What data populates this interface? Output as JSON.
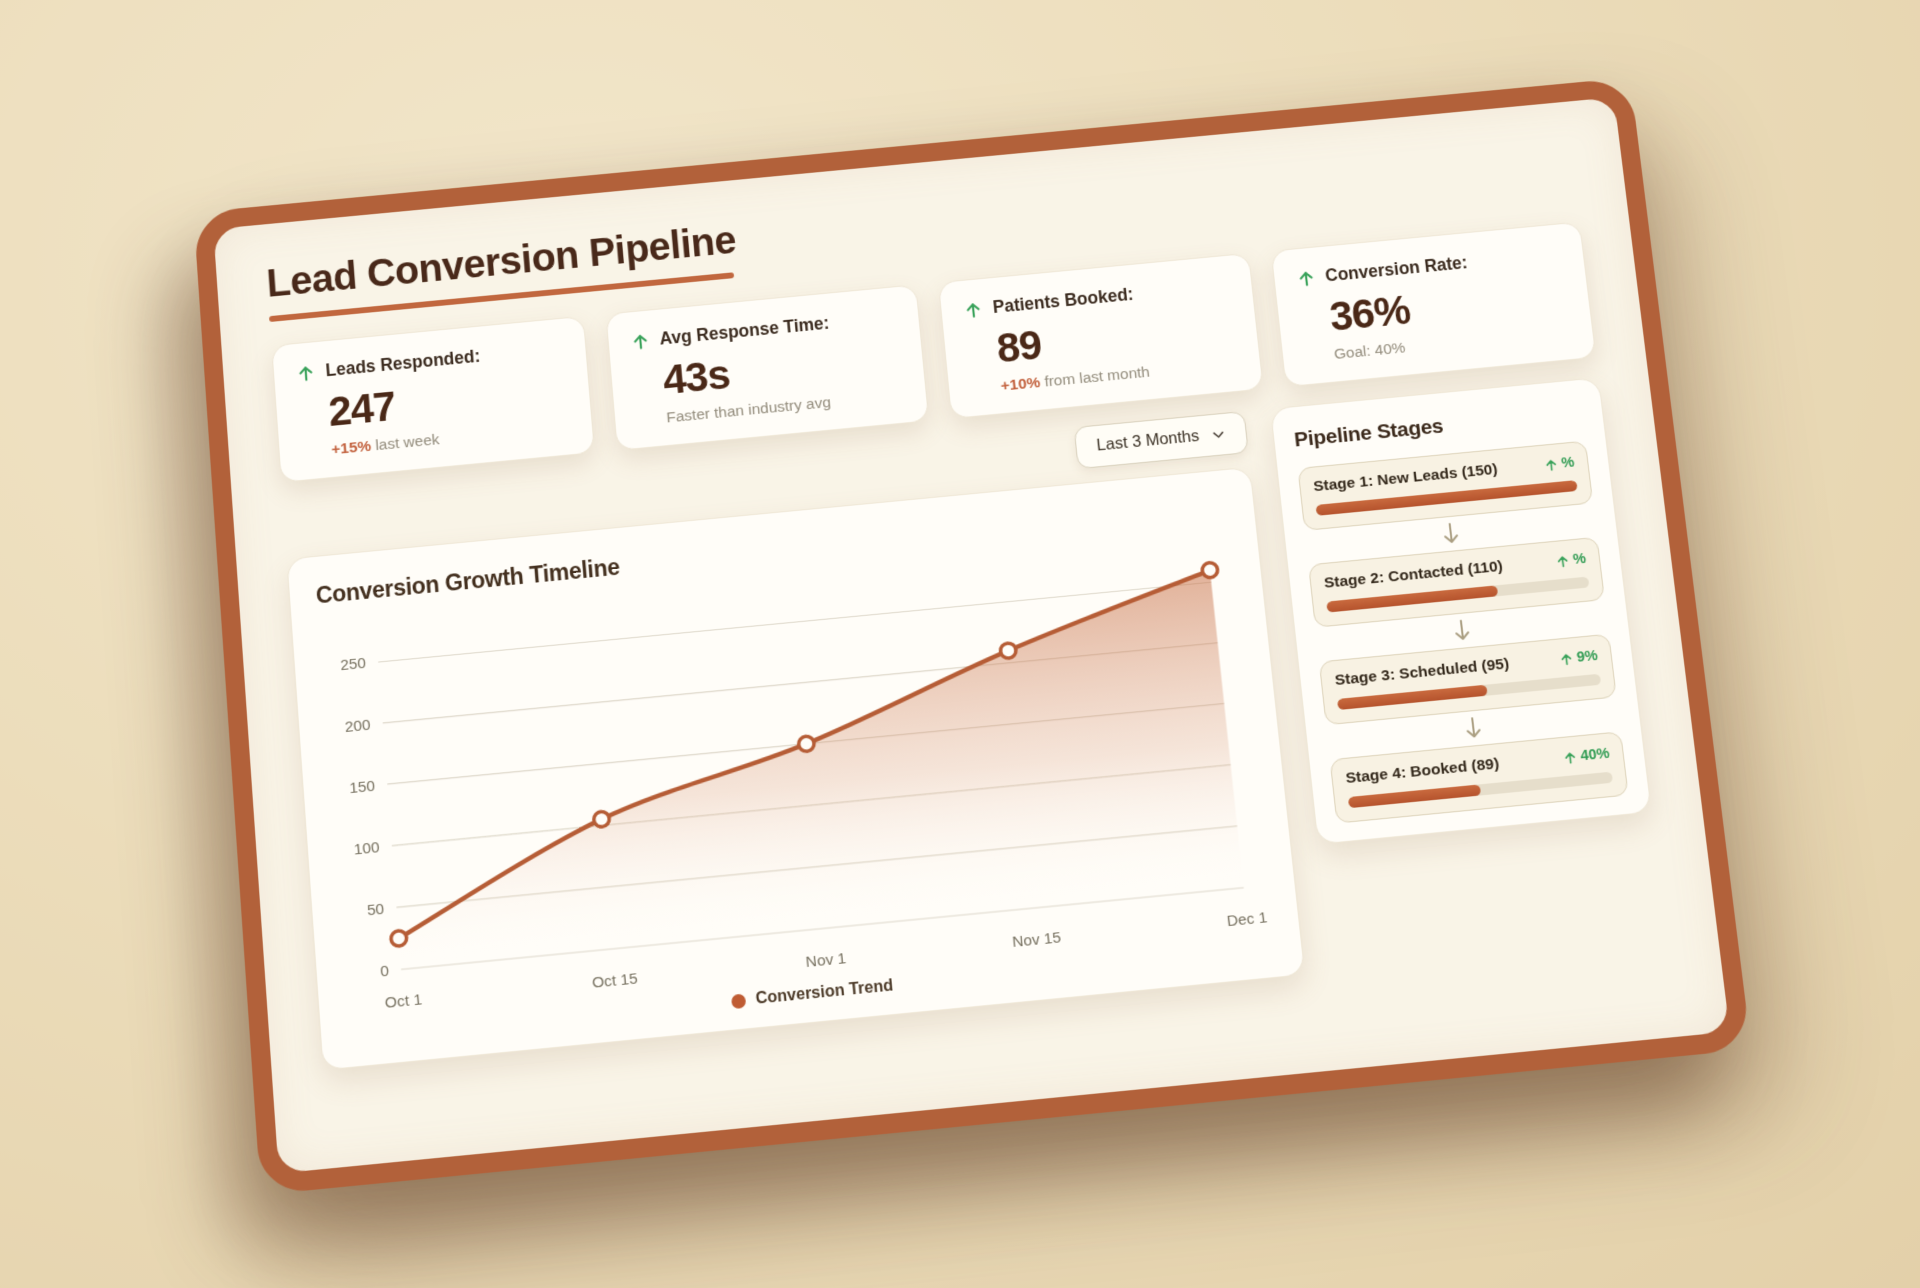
{
  "header": {
    "title": "Lead Conversion Pipeline"
  },
  "kpis": [
    {
      "label": "Leads Responded:",
      "value": "247",
      "note_highlight": "+15%",
      "note": " last week"
    },
    {
      "label": "Avg Response Time:",
      "value": "43s",
      "note_highlight": "",
      "note": "Faster than industry avg"
    },
    {
      "label": "Patients Booked:",
      "value": "89",
      "note_highlight": "+10%",
      "note": " from last month"
    },
    {
      "label": "Conversion Rate:",
      "value": "36%",
      "note_highlight": "",
      "note": "Goal: 40%"
    }
  ],
  "timeline": {
    "title": "Conversion Growth Timeline",
    "filter_label": "Last 3 Months",
    "legend": "Conversion Trend"
  },
  "chart_data": {
    "type": "line",
    "title": "Conversion Growth Timeline",
    "x": [
      "Oct 1",
      "Oct 15",
      "Nov 1",
      "Nov 15",
      "Dec 1"
    ],
    "series": [
      {
        "name": "Conversion Trend",
        "values": [
          25,
          105,
          150,
          210,
          260
        ]
      }
    ],
    "xlabel": "",
    "ylabel": "",
    "ylim": [
      0,
      275
    ],
    "yticks": [
      0,
      50,
      100,
      150,
      200,
      250
    ],
    "grid": true,
    "legend_position": "bottom",
    "colors": {
      "line": "#b65d36",
      "marker_fill": "#fffdf8",
      "fill_top": "#c66c42"
    }
  },
  "pipeline": {
    "title": "Pipeline Stages",
    "stages": [
      {
        "label": "Stage 1: New Leads (150)",
        "delta": "%",
        "progress": 100
      },
      {
        "label": "Stage 2: Contacted (110)",
        "delta": "%",
        "progress": 65
      },
      {
        "label": "Stage 3: Scheduled (95)",
        "delta": "9%",
        "progress": 57
      },
      {
        "label": "Stage 4: Booked (89)",
        "delta": "40%",
        "progress": 50
      }
    ]
  },
  "colors": {
    "frame": "#b2613a",
    "board_bg": "#f9f4e7",
    "accent_orange": "#c1673e",
    "accent_green": "#39a25a",
    "text_dark": "#49291a",
    "text_gray": "#938c7c"
  }
}
